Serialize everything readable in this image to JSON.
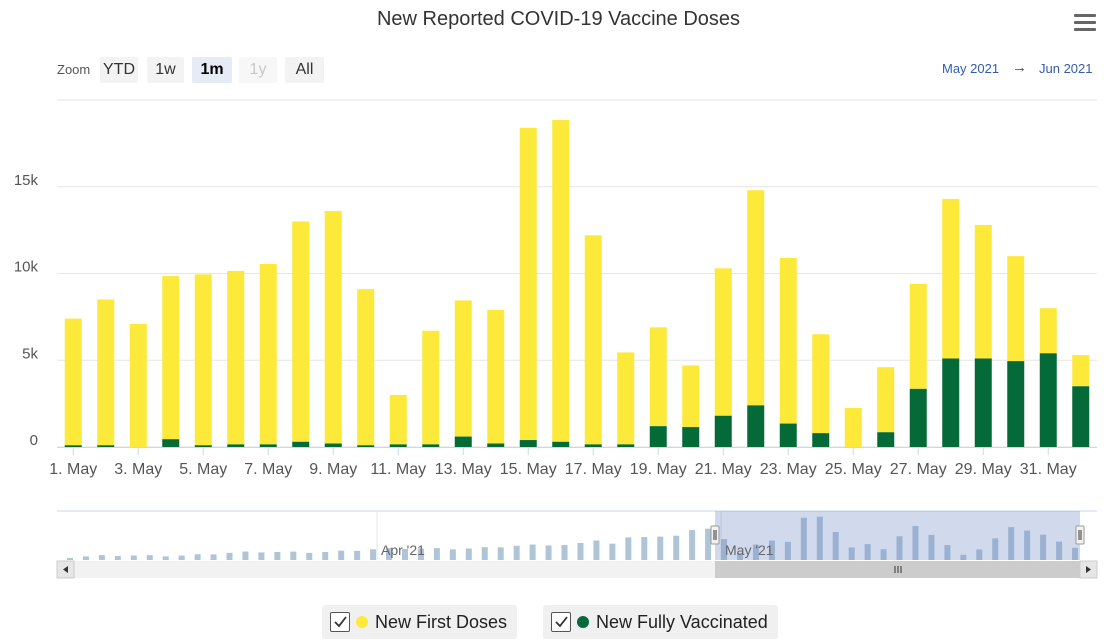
{
  "title": "New Reported COVID-19 Vaccine Doses",
  "menu_icon": "hamburger-menu-icon",
  "zoom": {
    "label": "Zoom",
    "buttons": [
      "YTD",
      "1w",
      "1m",
      "1y",
      "All"
    ],
    "active": "1m",
    "disabled": "1y"
  },
  "range": {
    "from": "May 2021",
    "arrow": "→",
    "to": "Jun 2021"
  },
  "navigator": {
    "labels": [
      "Apr '21",
      "May '21"
    ]
  },
  "colors": {
    "first": "#fce93a",
    "full": "#046a38",
    "navbar": "#b0c4d8"
  },
  "legend": {
    "first_label": "New First Doses",
    "full_label": "New Fully Vaccinated"
  },
  "chart_data": {
    "type": "bar",
    "stacked": true,
    "title": "New Reported COVID-19 Vaccine Doses",
    "categories": [
      "1. May",
      "2. May",
      "3. May",
      "4. May",
      "5. May",
      "6. May",
      "7. May",
      "8. May",
      "9. May",
      "10. May",
      "11. May",
      "12. May",
      "13. May",
      "14. May",
      "15. May",
      "16. May",
      "17. May",
      "18. May",
      "19. May",
      "20. May",
      "21. May",
      "22. May",
      "23. May",
      "24. May",
      "25. May",
      "26. May",
      "27. May",
      "28. May",
      "29. May",
      "30. May",
      "31. May",
      "1. Jun"
    ],
    "x_tick_labels": [
      "1. May",
      "3. May",
      "5. May",
      "7. May",
      "9. May",
      "11. May",
      "13. May",
      "15. May",
      "17. May",
      "19. May",
      "21. May",
      "23. May",
      "25. May",
      "27. May",
      "29. May",
      "31. May"
    ],
    "y_tick_labels": [
      "0",
      "5k",
      "10k",
      "15k"
    ],
    "ylim": [
      0,
      20000
    ],
    "series": [
      {
        "name": "New Fully Vaccinated",
        "values": [
          100,
          100,
          0,
          450,
          100,
          150,
          150,
          300,
          200,
          100,
          150,
          150,
          600,
          200,
          400,
          300,
          150,
          150,
          1200,
          1150,
          1800,
          2400,
          1350,
          800,
          0,
          850,
          3350,
          5100,
          5100,
          4950,
          5400,
          3500
        ]
      },
      {
        "name": "New First Doses",
        "values": [
          7300,
          8400,
          7100,
          9400,
          9850,
          10000,
          10400,
          12700,
          13400,
          9000,
          2850,
          6550,
          7850,
          7700,
          18000,
          18550,
          12050,
          5300,
          5700,
          3550,
          8500,
          12400,
          9550,
          5700,
          2250,
          3750,
          6050,
          9200,
          7700,
          6050,
          2600,
          1800
        ]
      }
    ]
  }
}
